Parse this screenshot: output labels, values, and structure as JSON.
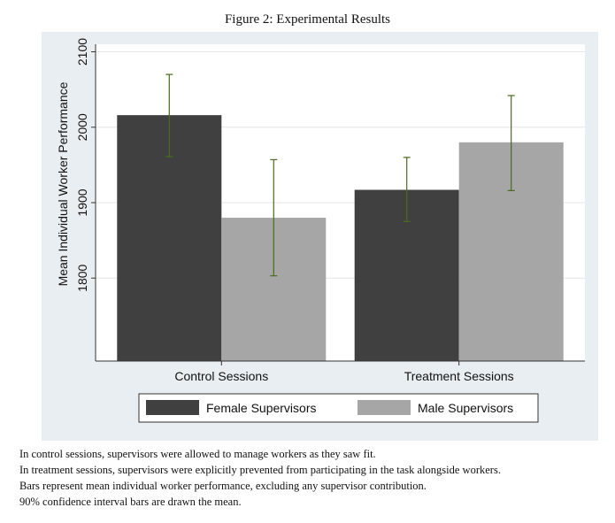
{
  "figure": {
    "title": "Figure 2: Experimental Results"
  },
  "chart_data": {
    "type": "bar",
    "title": "Figure 2: Experimental Results",
    "xlabel": "",
    "ylabel": "Mean Individual Worker Performance",
    "ylim": [
      1690,
      2110
    ],
    "yticks": [
      1800,
      1900,
      2000,
      2100
    ],
    "categories": [
      "Control Sessions",
      "Treatment Sessions"
    ],
    "series": [
      {
        "name": "Female Supervisors",
        "color": "#404040",
        "values": [
          2016,
          1917
        ],
        "ci_low": [
          1961,
          1875
        ],
        "ci_high": [
          2070,
          1960
        ]
      },
      {
        "name": "Male Supervisors",
        "color": "#a6a6a6",
        "values": [
          1880,
          1980
        ],
        "ci_low": [
          1803,
          1916
        ],
        "ci_high": [
          1957,
          2042
        ]
      }
    ],
    "errorbar_color": "#4b6b1e",
    "grid": true,
    "legend": "bottom"
  },
  "notes": [
    "In control sessions, supervisors were allowed to manage workers as they saw fit.",
    "In treatment sessions, supervisors were explicitly prevented from participating in the task alongside workers.",
    "Bars represent mean individual worker performance, excluding any supervisor contribution.",
    "90% confidence interval bars are drawn the mean."
  ]
}
